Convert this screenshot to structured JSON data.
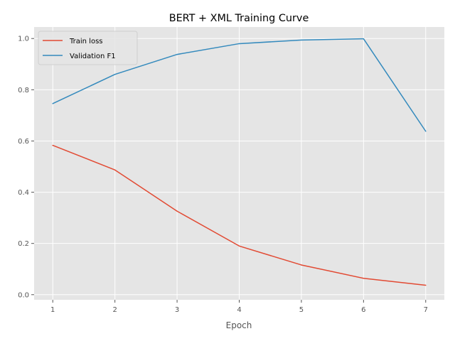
{
  "chart_data": {
    "type": "line",
    "title": "BERT + XML Training Curve",
    "xlabel": "Epoch",
    "ylabel": "",
    "x": [
      1,
      2,
      3,
      4,
      5,
      6,
      7
    ],
    "xticks": [
      "1",
      "2",
      "3",
      "4",
      "5",
      "6",
      "7"
    ],
    "xlim": [
      0.7,
      7.3
    ],
    "ylim": [
      -0.02,
      1.045
    ],
    "yticks": [
      "0.0",
      "0.2",
      "0.4",
      "0.6",
      "0.8",
      "1.0"
    ],
    "grid": true,
    "legend": "top-left",
    "series": [
      {
        "name": "Train loss",
        "color": "#e24a33",
        "values": [
          0.583,
          0.487,
          0.326,
          0.19,
          0.116,
          0.064,
          0.037
        ]
      },
      {
        "name": "Validation F1",
        "color": "#348abd",
        "values": [
          0.746,
          0.86,
          0.938,
          0.98,
          0.994,
          0.999,
          0.638
        ]
      }
    ]
  }
}
